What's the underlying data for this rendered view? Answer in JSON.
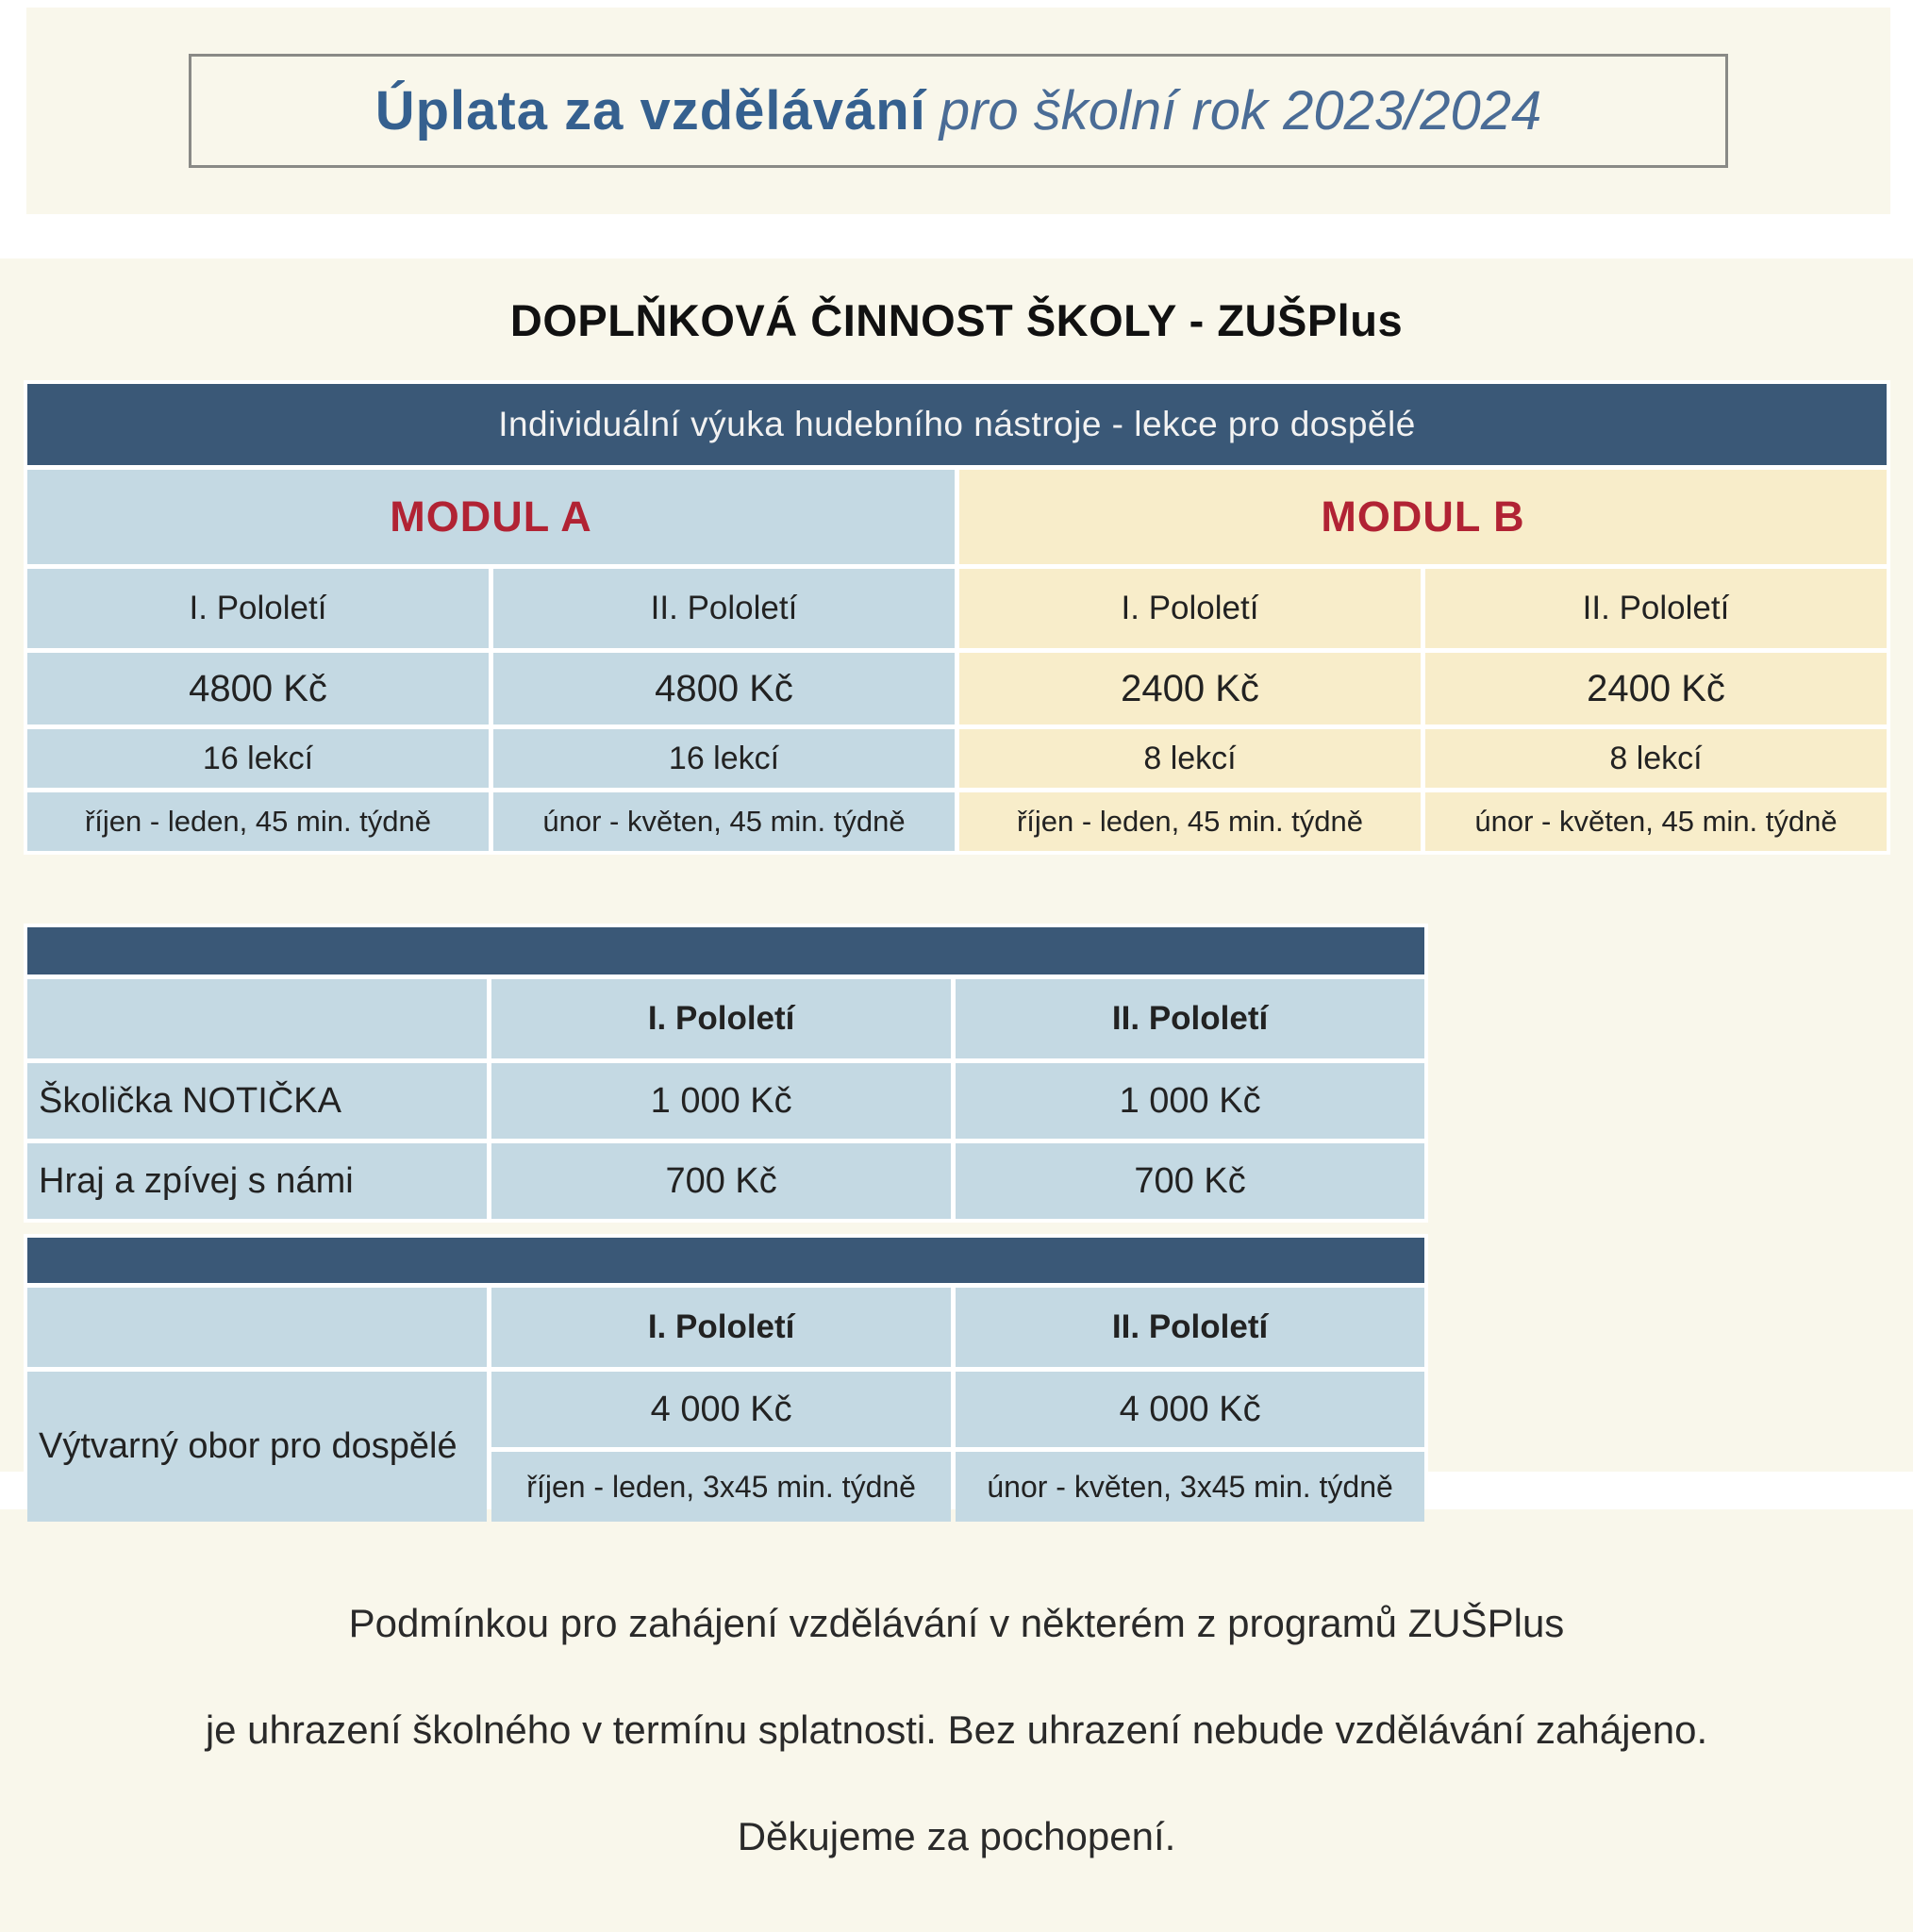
{
  "banner": {
    "title_bold": "Úplata za vzdělávání",
    "title_italic": "pro školní rok 2023/2024"
  },
  "section_title": "DOPLŇKOVÁ ČINNOST ŠKOLY - ZUŠPlus",
  "table1": {
    "header": "Individuální výuka hudebního nástroje - lekce pro dospělé",
    "modules": [
      {
        "name": "MODUL A",
        "semesters": [
          {
            "label": "I. Pololetí",
            "price": "4800 Kč",
            "lessons": "16 lekcí",
            "schedule": "říjen - leden, 45 min. týdně"
          },
          {
            "label": "II. Pololetí",
            "price": "4800 Kč",
            "lessons": "16 lekcí",
            "schedule": "únor - květen, 45 min. týdně"
          }
        ]
      },
      {
        "name": "MODUL B",
        "semesters": [
          {
            "label": "I. Pololetí",
            "price": "2400 Kč",
            "lessons": "8 lekcí",
            "schedule": "říjen - leden, 45 min. týdně"
          },
          {
            "label": "II. Pololetí",
            "price": "2400 Kč",
            "lessons": "8 lekcí",
            "schedule": "únor - květen, 45 min. týdně"
          }
        ]
      }
    ]
  },
  "table2": {
    "col_headers": [
      "I. Pololetí",
      "II. Pololetí"
    ],
    "rows": [
      {
        "label": "Školička NOTIČKA",
        "values": [
          "1 000 Kč",
          "1 000 Kč"
        ]
      },
      {
        "label": "Hraj a zpívej s námi",
        "values": [
          "700 Kč",
          "700 Kč"
        ]
      }
    ]
  },
  "table3": {
    "col_headers": [
      "I. Pololetí",
      "II. Pololetí"
    ],
    "row_label": "Výtvarný obor pro dospělé",
    "prices": [
      "4 000 Kč",
      "4 000 Kč"
    ],
    "schedules": [
      "říjen - leden, 3x45 min. týdně",
      "únor - květen, 3x45 min. týdně"
    ]
  },
  "footer": {
    "line1": "Podmínkou pro zahájení vzdělávání v některém z programů ZUŠPlus",
    "line2": "je uhrazení školného v termínu splatnosti. Bez uhrazení nebude vzdělávání zahájeno.",
    "line3": "Děkujeme za pochopení."
  },
  "colors": {
    "navy_bar": "#3a5877",
    "light_blue_cell": "#c4d9e3",
    "module_b_cream_cell": "#f8edca",
    "page_cream": "#f9f7eb",
    "module_red": "#b12334",
    "title_blue": "#35608f"
  }
}
